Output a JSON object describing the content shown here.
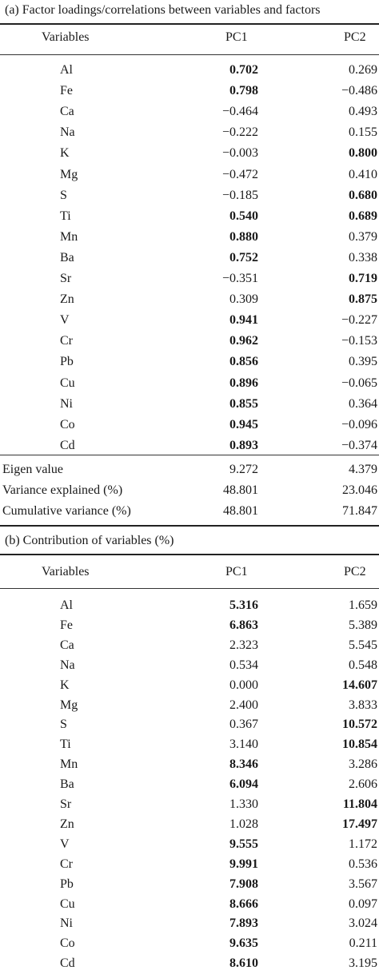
{
  "section_a": {
    "title": "(a) Factor loadings/correlations between variables and factors",
    "headers": [
      "Variables",
      "PC1",
      "PC2"
    ],
    "rows": [
      {
        "var": "Al",
        "pc1": "0.702",
        "pc1_bold": true,
        "pc2": "0.269",
        "pc2_bold": false
      },
      {
        "var": "Fe",
        "pc1": "0.798",
        "pc1_bold": true,
        "pc2": "−0.486",
        "pc2_bold": false
      },
      {
        "var": "Ca",
        "pc1": "−0.464",
        "pc1_bold": false,
        "pc2": "0.493",
        "pc2_bold": false
      },
      {
        "var": "Na",
        "pc1": "−0.222",
        "pc1_bold": false,
        "pc2": "0.155",
        "pc2_bold": false
      },
      {
        "var": "K",
        "pc1": "−0.003",
        "pc1_bold": false,
        "pc2": "0.800",
        "pc2_bold": true
      },
      {
        "var": "Mg",
        "pc1": "−0.472",
        "pc1_bold": false,
        "pc2": "0.410",
        "pc2_bold": false
      },
      {
        "var": "S",
        "pc1": "−0.185",
        "pc1_bold": false,
        "pc2": "0.680",
        "pc2_bold": true
      },
      {
        "var": "Ti",
        "pc1": "0.540",
        "pc1_bold": true,
        "pc2": "0.689",
        "pc2_bold": true
      },
      {
        "var": "Mn",
        "pc1": "0.880",
        "pc1_bold": true,
        "pc2": "0.379",
        "pc2_bold": false
      },
      {
        "var": "Ba",
        "pc1": "0.752",
        "pc1_bold": true,
        "pc2": "0.338",
        "pc2_bold": false
      },
      {
        "var": "Sr",
        "pc1": "−0.351",
        "pc1_bold": false,
        "pc2": "0.719",
        "pc2_bold": true
      },
      {
        "var": "Zn",
        "pc1": "0.309",
        "pc1_bold": false,
        "pc2": "0.875",
        "pc2_bold": true
      },
      {
        "var": "V",
        "pc1": "0.941",
        "pc1_bold": true,
        "pc2": "−0.227",
        "pc2_bold": false
      },
      {
        "var": "Cr",
        "pc1": "0.962",
        "pc1_bold": true,
        "pc2": "−0.153",
        "pc2_bold": false
      },
      {
        "var": "Pb",
        "pc1": "0.856",
        "pc1_bold": true,
        "pc2": "0.395",
        "pc2_bold": false
      },
      {
        "var": "Cu",
        "pc1": "0.896",
        "pc1_bold": true,
        "pc2": "−0.065",
        "pc2_bold": false
      },
      {
        "var": "Ni",
        "pc1": "0.855",
        "pc1_bold": true,
        "pc2": "0.364",
        "pc2_bold": false
      },
      {
        "var": "Co",
        "pc1": "0.945",
        "pc1_bold": true,
        "pc2": "−0.096",
        "pc2_bold": false
      },
      {
        "var": "Cd",
        "pc1": "0.893",
        "pc1_bold": true,
        "pc2": "−0.374",
        "pc2_bold": false
      }
    ],
    "summary": [
      {
        "label": "Eigen value",
        "pc1": "9.272",
        "pc2": "4.379"
      },
      {
        "label": "Variance explained (%)",
        "pc1": "48.801",
        "pc2": "23.046"
      },
      {
        "label": "Cumulative variance (%)",
        "pc1": "48.801",
        "pc2": "71.847"
      }
    ]
  },
  "section_b": {
    "title": "(b) Contribution of variables (%)",
    "headers": [
      "Variables",
      "PC1",
      "PC2"
    ],
    "rows": [
      {
        "var": "Al",
        "pc1": "5.316",
        "pc1_bold": true,
        "pc2": "1.659",
        "pc2_bold": false
      },
      {
        "var": "Fe",
        "pc1": "6.863",
        "pc1_bold": true,
        "pc2": "5.389",
        "pc2_bold": false
      },
      {
        "var": "Ca",
        "pc1": "2.323",
        "pc1_bold": false,
        "pc2": "5.545",
        "pc2_bold": false
      },
      {
        "var": "Na",
        "pc1": "0.534",
        "pc1_bold": false,
        "pc2": "0.548",
        "pc2_bold": false
      },
      {
        "var": "K",
        "pc1": "0.000",
        "pc1_bold": false,
        "pc2": "14.607",
        "pc2_bold": true
      },
      {
        "var": "Mg",
        "pc1": "2.400",
        "pc1_bold": false,
        "pc2": "3.833",
        "pc2_bold": false
      },
      {
        "var": "S",
        "pc1": "0.367",
        "pc1_bold": false,
        "pc2": "10.572",
        "pc2_bold": true
      },
      {
        "var": "Ti",
        "pc1": "3.140",
        "pc1_bold": false,
        "pc2": "10.854",
        "pc2_bold": true
      },
      {
        "var": "Mn",
        "pc1": "8.346",
        "pc1_bold": true,
        "pc2": "3.286",
        "pc2_bold": false
      },
      {
        "var": "Ba",
        "pc1": "6.094",
        "pc1_bold": true,
        "pc2": "2.606",
        "pc2_bold": false
      },
      {
        "var": "Sr",
        "pc1": "1.330",
        "pc1_bold": false,
        "pc2": "11.804",
        "pc2_bold": true
      },
      {
        "var": "Zn",
        "pc1": "1.028",
        "pc1_bold": false,
        "pc2": "17.497",
        "pc2_bold": true
      },
      {
        "var": "V",
        "pc1": "9.555",
        "pc1_bold": true,
        "pc2": "1.172",
        "pc2_bold": false
      },
      {
        "var": "Cr",
        "pc1": "9.991",
        "pc1_bold": true,
        "pc2": "0.536",
        "pc2_bold": false
      },
      {
        "var": "Pb",
        "pc1": "7.908",
        "pc1_bold": true,
        "pc2": "3.567",
        "pc2_bold": false
      },
      {
        "var": "Cu",
        "pc1": "8.666",
        "pc1_bold": true,
        "pc2": "0.097",
        "pc2_bold": false
      },
      {
        "var": "Ni",
        "pc1": "7.893",
        "pc1_bold": true,
        "pc2": "3.024",
        "pc2_bold": false
      },
      {
        "var": "Co",
        "pc1": "9.635",
        "pc1_bold": true,
        "pc2": "0.211",
        "pc2_bold": false
      },
      {
        "var": "Cd",
        "pc1": "8.610",
        "pc1_bold": true,
        "pc2": "3.195",
        "pc2_bold": false
      }
    ]
  }
}
